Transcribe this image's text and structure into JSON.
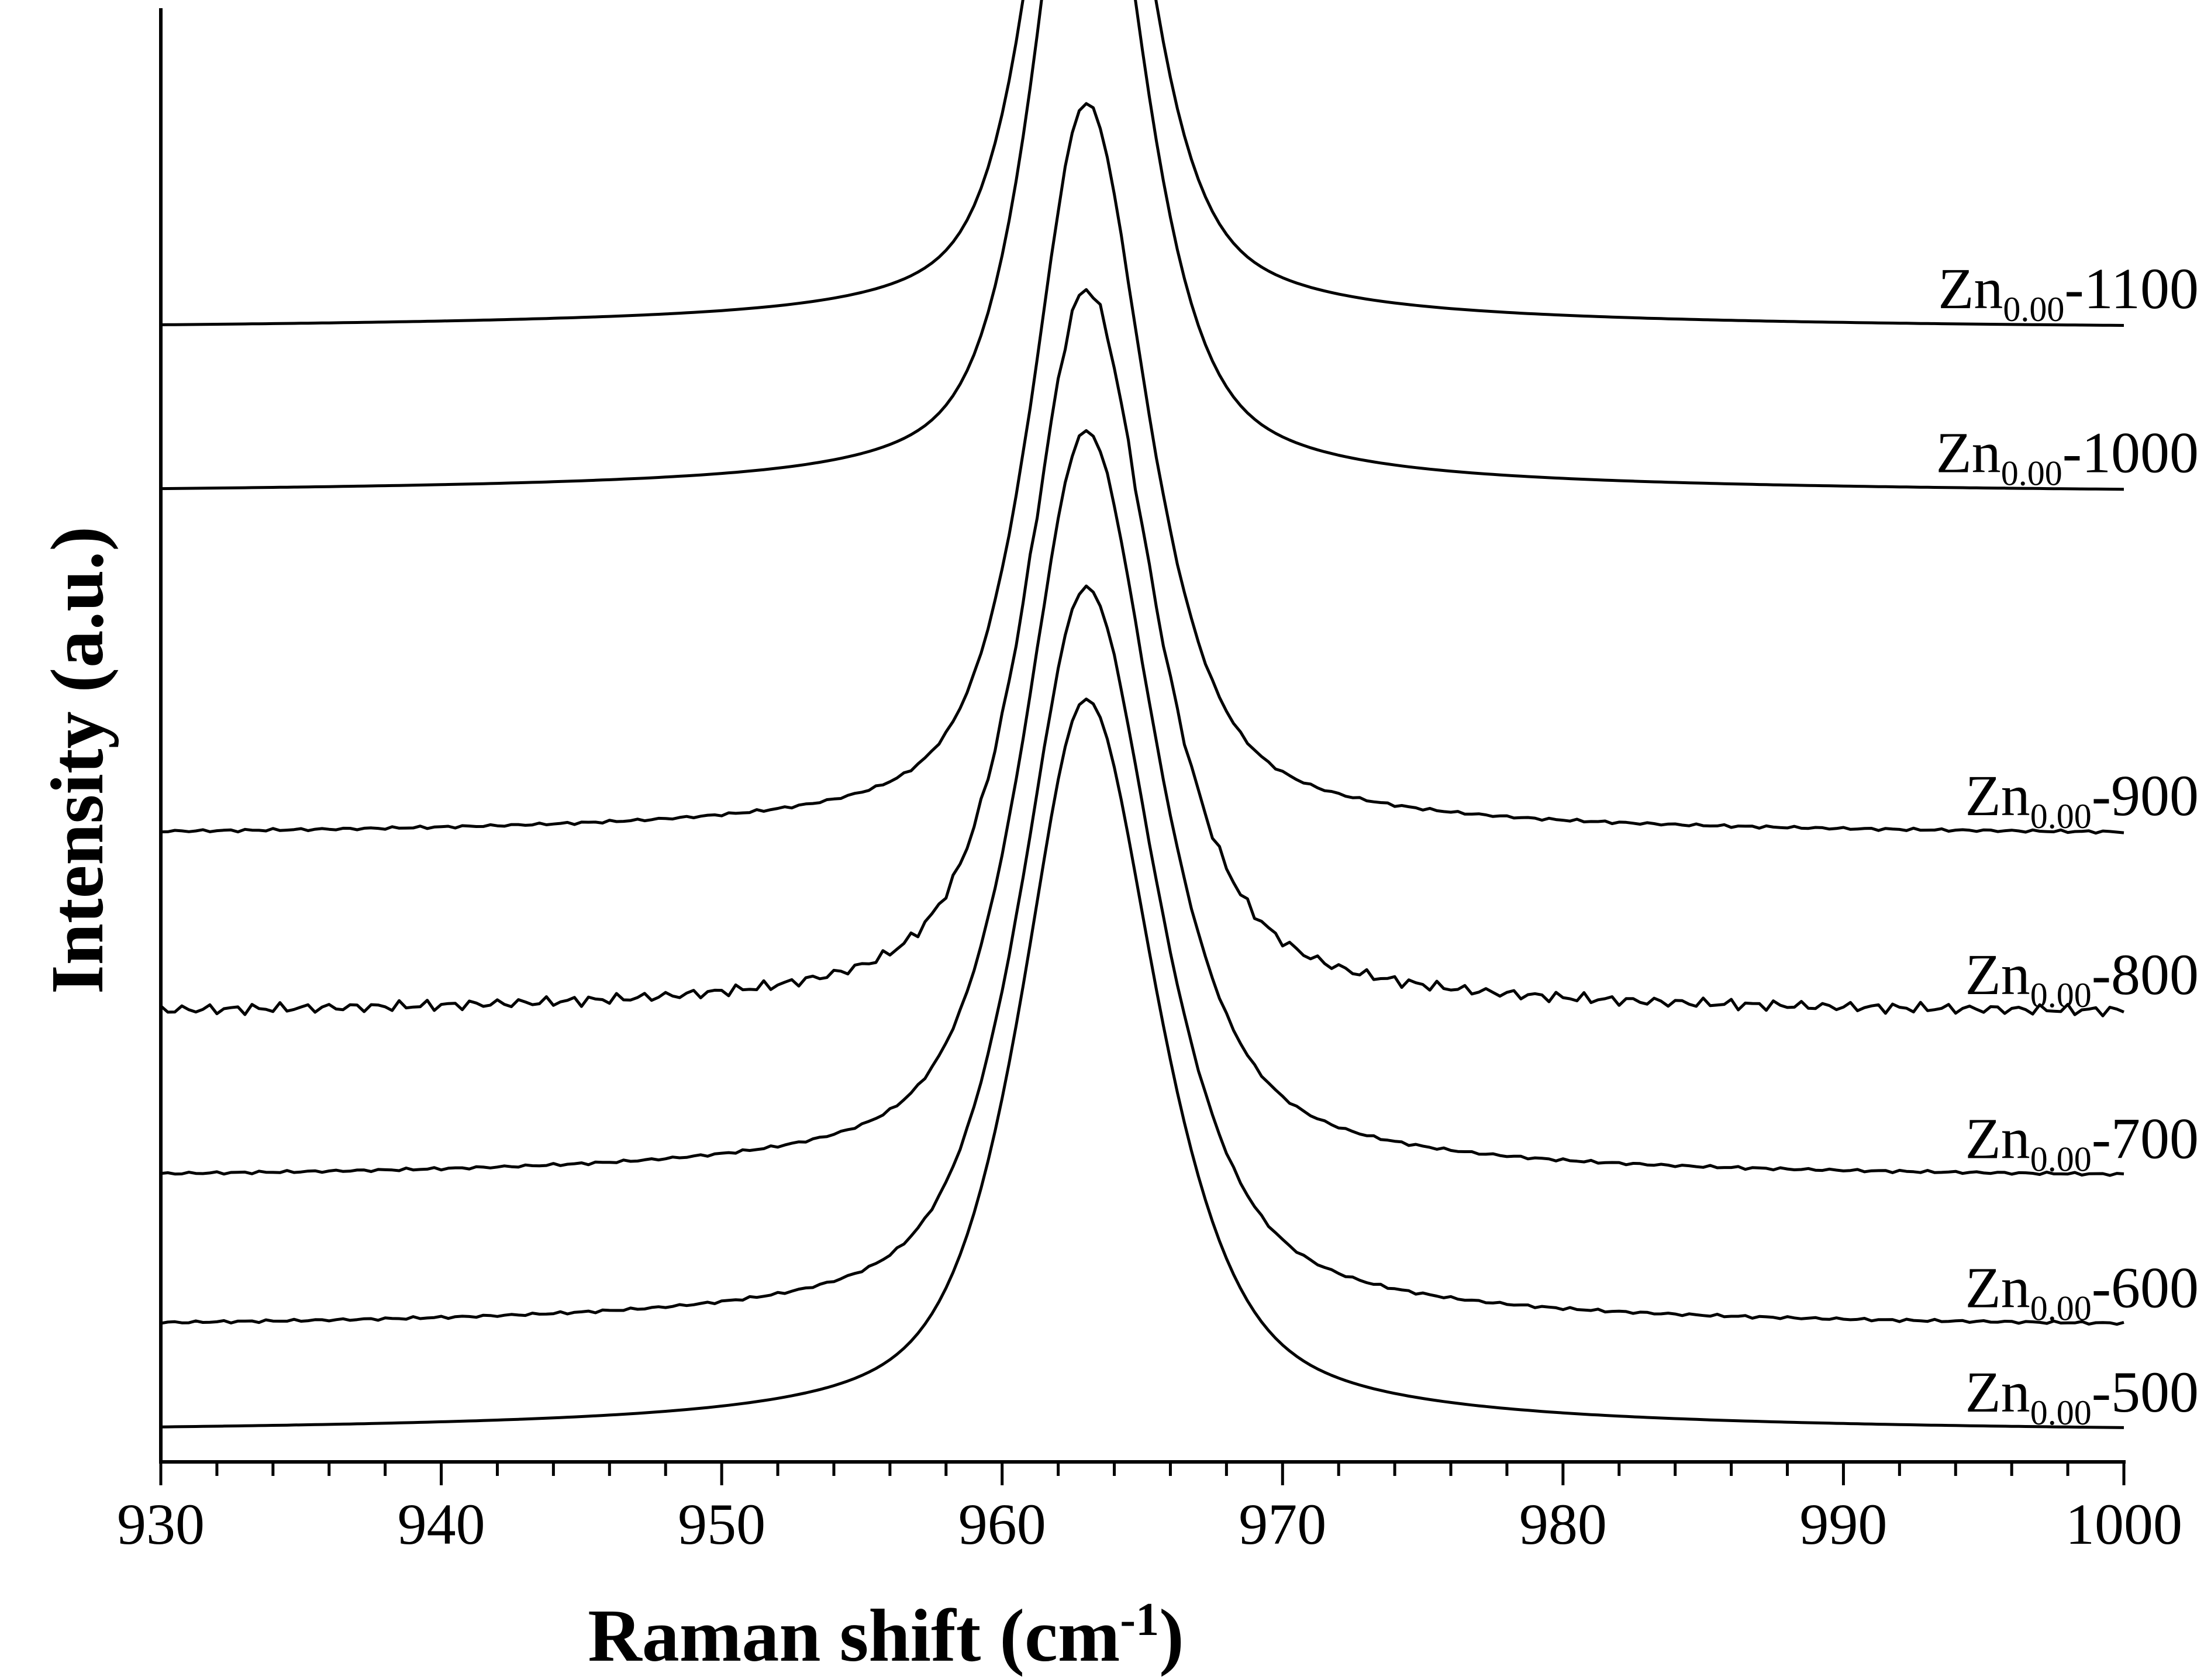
{
  "chart_data": {
    "type": "line",
    "title": "",
    "xlabel": "Raman shift (cm",
    "xlabel_sup": "-1",
    "xlabel_close": ")",
    "ylabel": "Intensity (a.u.)",
    "xlim": [
      930,
      1000
    ],
    "x_ticks": [
      930,
      940,
      950,
      960,
      970,
      980,
      990,
      1000
    ],
    "x_tick_labels": [
      "930",
      "940",
      "950",
      "960",
      "970",
      "980",
      "990",
      "1000"
    ],
    "y_ticks_shown": false,
    "grid": false,
    "legend": "inline labels at right end of each curve",
    "peak_center": 963,
    "series": [
      {
        "name_base": "Zn",
        "name_sub": "0.00",
        "name_suffix": "-500",
        "baseline": 0.0,
        "peak_height": 4.8,
        "width": 2.6,
        "noise": 0.0
      },
      {
        "name_base": "Zn",
        "name_sub": "0.00",
        "name_suffix": "-600",
        "baseline": 0.7,
        "peak_height": 4.85,
        "width": 2.6,
        "noise": 0.01
      },
      {
        "name_base": "Zn",
        "name_sub": "0.00",
        "name_suffix": "-700",
        "baseline": 1.7,
        "peak_height": 4.9,
        "width": 2.5,
        "noise": 0.01
      },
      {
        "name_base": "Zn",
        "name_sub": "0.00",
        "name_suffix": "-800",
        "baseline": 2.8,
        "peak_height": 4.75,
        "width": 2.4,
        "noise": 0.04
      },
      {
        "name_base": "Zn",
        "name_sub": "0.00",
        "name_suffix": "-900",
        "baseline": 4.0,
        "peak_height": 4.8,
        "width": 2.2,
        "noise": 0.01
      },
      {
        "name_base": "Zn",
        "name_sub": "0.00",
        "name_suffix": "-1000",
        "baseline": 6.3,
        "peak_height": 4.97,
        "width": 2.0,
        "noise": 0.0
      },
      {
        "name_base": "Zn",
        "name_sub": "0.00",
        "name_suffix": "-1100",
        "baseline": 7.4,
        "peak_height": 4.9,
        "width": 1.9,
        "noise": 0.0
      }
    ]
  }
}
